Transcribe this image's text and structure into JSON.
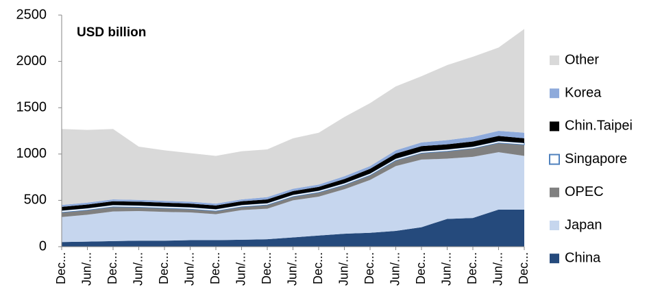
{
  "chart_data": {
    "type": "stacked-area",
    "title": "USD billion",
    "categories": [
      "Dec...",
      "Jun/...",
      "Dec...",
      "Jun/...",
      "Dec...",
      "Jun/...",
      "Dec...",
      "Jun/...",
      "Dec...",
      "Jun/...",
      "Dec...",
      "Jun/...",
      "Dec...",
      "Jun/...",
      "Dec...",
      "Jun/...",
      "Dec...",
      "Jun/...",
      "Dec..."
    ],
    "series": [
      {
        "name": "China",
        "color": "#254a7c",
        "values": [
          50,
          55,
          60,
          65,
          65,
          70,
          70,
          75,
          80,
          100,
          120,
          140,
          150,
          170,
          210,
          300,
          310,
          400,
          400
        ]
      },
      {
        "name": "Japan",
        "color": "#c6d6ee",
        "values": [
          270,
          290,
          320,
          320,
          310,
          300,
          280,
          320,
          330,
          400,
          420,
          480,
          570,
          700,
          730,
          650,
          660,
          620,
          580
        ]
      },
      {
        "name": "OPEC",
        "color": "#808080",
        "values": [
          50,
          50,
          50,
          40,
          40,
          35,
          35,
          35,
          40,
          40,
          45,
          45,
          50,
          60,
          70,
          80,
          90,
          100,
          120
        ]
      },
      {
        "name": "Singapore",
        "color": "#ffffff",
        "edgecolor": "#4f81bd",
        "values": [
          20,
          20,
          20,
          20,
          20,
          20,
          20,
          20,
          20,
          20,
          20,
          20,
          20,
          20,
          20,
          20,
          20,
          20,
          20
        ]
      },
      {
        "name": "Chin.Taipei",
        "color": "#000000",
        "values": [
          40,
          40,
          40,
          40,
          40,
          40,
          40,
          40,
          40,
          40,
          40,
          45,
          50,
          55,
          55,
          55,
          55,
          55,
          50
        ]
      },
      {
        "name": "Korea",
        "color": "#8eaadb",
        "values": [
          20,
          20,
          20,
          20,
          20,
          20,
          20,
          20,
          25,
          25,
          25,
          30,
          30,
          35,
          40,
          45,
          50,
          55,
          60
        ]
      },
      {
        "name": "Other",
        "color": "#d9d9d9",
        "values": [
          820,
          785,
          760,
          575,
          545,
          525,
          515,
          520,
          515,
          545,
          560,
          640,
          680,
          690,
          715,
          810,
          865,
          900,
          1120
        ]
      }
    ],
    "ylim": [
      0,
      2500
    ],
    "yticks": [
      0,
      500,
      1000,
      1500,
      2000,
      2500
    ],
    "grid": false
  }
}
